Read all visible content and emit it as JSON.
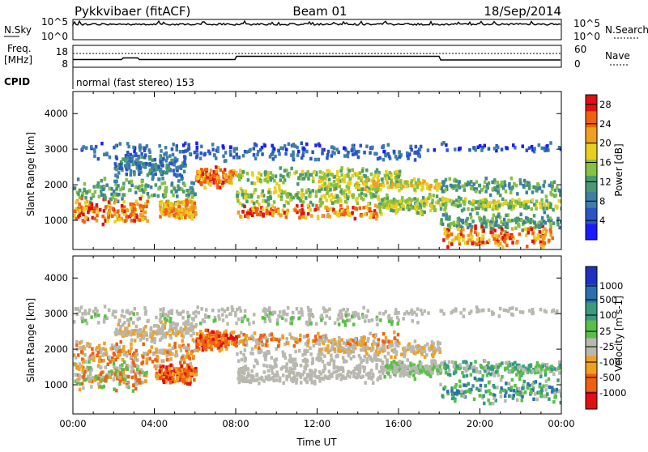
{
  "header": {
    "station": "Pykkvibaer (fitACF)",
    "beam": "Beam 01",
    "date": "18/Sep/2014"
  },
  "nsky_panel": {
    "left_label": "N.Sky",
    "right_label": "N.Search",
    "tick_top": "10^5",
    "tick_bottom": "10^0",
    "right_tick_top": "10^5",
    "right_tick_bottom": "10^0"
  },
  "freq_panel": {
    "left_label_1": "Freq.",
    "left_label_2": "[MHz]",
    "tick_top": "18",
    "tick_bottom": "8",
    "right_label": "Nave",
    "right_tick_top": "60",
    "right_tick_bottom": "0"
  },
  "cpid_panel": {
    "label": "CPID",
    "text": "normal (fast stereo) 153"
  },
  "chart_data": [
    {
      "type": "heatmap",
      "name": "power",
      "xlabel": "Time UT",
      "ylabel": "Slant Range [km]",
      "x_ticks": [
        "00:00",
        "04:00",
        "08:00",
        "12:00",
        "16:00",
        "20:00",
        "00:00"
      ],
      "x_range_hours": [
        0,
        24
      ],
      "y_ticks": [
        1000,
        2000,
        3000,
        4000
      ],
      "y_range_km": [
        180,
        4620
      ],
      "colorbar_label": "Power [dB]",
      "colorbar_ticks": [
        "4",
        "8",
        "12",
        "16",
        "20",
        "24",
        "28"
      ],
      "colorbar_range": [
        0,
        30
      ],
      "colors": [
        "#1a1aff",
        "#2a55c8",
        "#3d7fa6",
        "#4a9a70",
        "#88c040",
        "#e8d020",
        "#f0a020",
        "#f06010",
        "#e01010"
      ]
    },
    {
      "type": "heatmap",
      "name": "velocity",
      "xlabel": "Time UT",
      "ylabel": "Slant Range [km]",
      "x_ticks": [
        "00:00",
        "04:00",
        "08:00",
        "12:00",
        "16:00",
        "20:00",
        "00:00"
      ],
      "x_range_hours": [
        0,
        24
      ],
      "y_ticks": [
        1000,
        2000,
        3000,
        4000
      ],
      "y_range_km": [
        180,
        4620
      ],
      "colorbar_label": "Velocity [m s-1]",
      "colorbar_ticks": [
        "1000",
        "500",
        "100",
        "25",
        "-25",
        "-100",
        "-500",
        "-1000"
      ],
      "colors": [
        "#2030c0",
        "#2a70b0",
        "#3a9a80",
        "#58c048",
        "#b8b8b0",
        "#f0a020",
        "#f06010",
        "#e01010"
      ]
    }
  ],
  "xaxis_title": "Time UT"
}
